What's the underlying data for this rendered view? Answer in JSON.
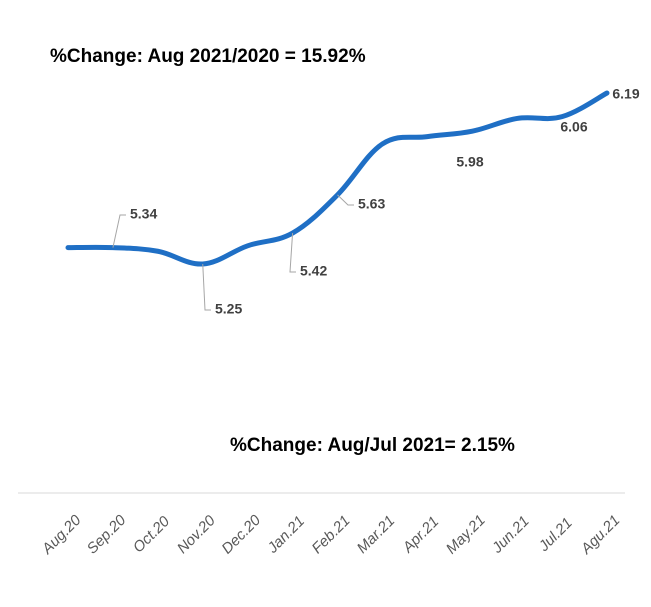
{
  "chart_data": {
    "type": "line",
    "title": "%Change: Aug 2021/2020 = 15.92%",
    "annotation": "%Change: Aug/Jul 2021= 2.15%",
    "categories": [
      "Aug.20",
      "Sep.20",
      "Oct.20",
      "Nov.20",
      "Dec.20",
      "Jan.21",
      "Feb.21",
      "Mar.21",
      "Apr.21",
      "May.21",
      "Jun.21",
      "Jul.21",
      "Agu.21"
    ],
    "series": [
      {
        "color": "#1f6fc5",
        "values": [
          5.34,
          5.34,
          5.32,
          5.25,
          5.35,
          5.42,
          5.63,
          5.91,
          5.95,
          5.98,
          6.05,
          6.06,
          6.19
        ],
        "value_labels": [
          null,
          "5.34",
          null,
          "5.25",
          null,
          "5.42",
          "5.63",
          null,
          null,
          "5.98",
          null,
          "6.06",
          "6.19"
        ]
      }
    ]
  }
}
